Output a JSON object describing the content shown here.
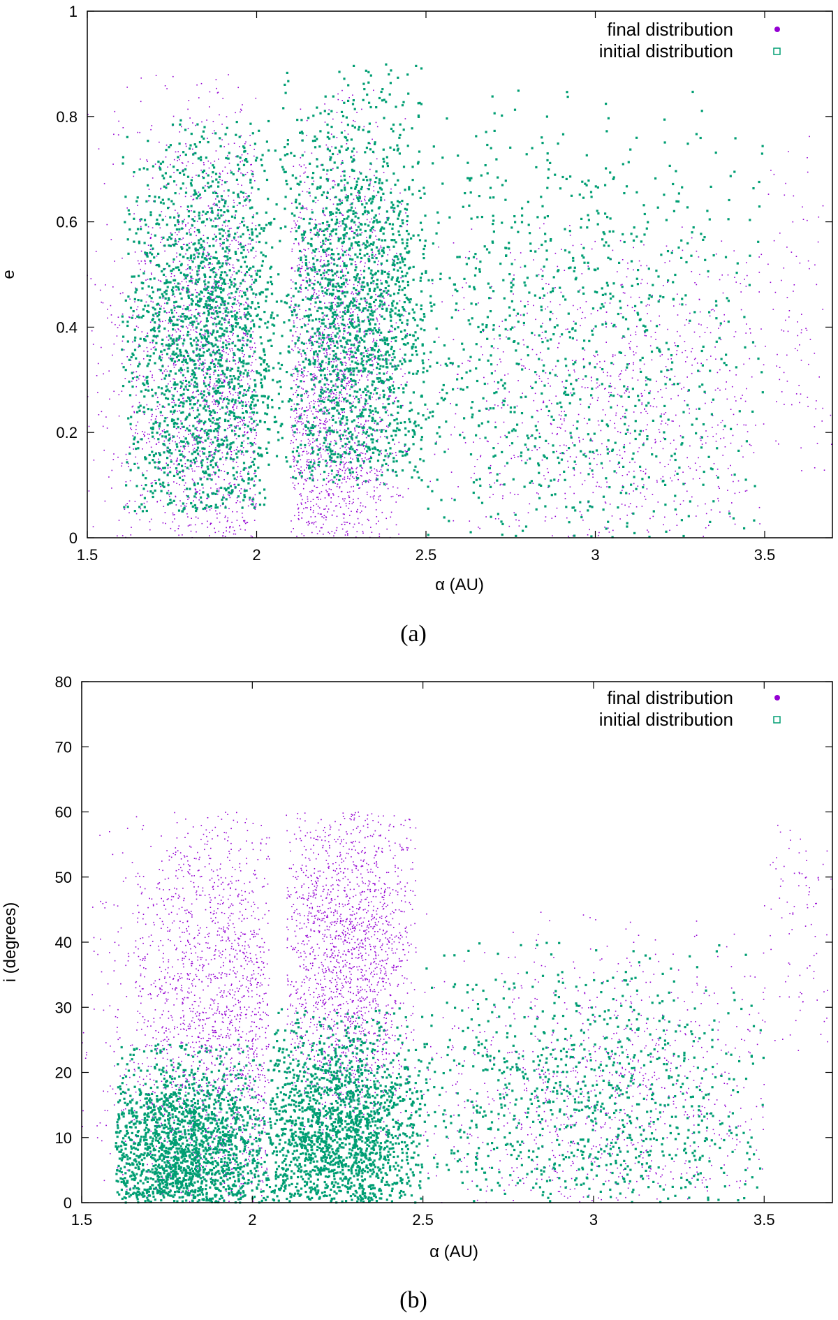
{
  "chart_data": [
    {
      "type": "scatter",
      "caption": "(a)",
      "xlabel": "α (AU)",
      "ylabel": "e",
      "xlim": [
        1.5,
        3.7
      ],
      "ylim": [
        0,
        1
      ],
      "xticks": [
        1.5,
        2,
        2.5,
        3,
        3.5
      ],
      "yticks": [
        0,
        0.2,
        0.4,
        0.6,
        0.8,
        1
      ],
      "xtick_labels": [
        "1.5",
        "2",
        "2.5",
        "3",
        "3.5"
      ],
      "ytick_labels": [
        "0",
        "0.2",
        "0.4",
        "0.6",
        "0.8",
        "1"
      ],
      "grid": false,
      "legend_position": "top-right",
      "series": [
        {
          "name": "final distribution",
          "color": "#9400d3",
          "marker": "dot",
          "clusters": [
            {
              "x": [
                1.5,
                2.0
              ],
              "y": [
                0.0,
                0.88
              ],
              "center": [
                1.88,
                0.3
              ],
              "density": "high"
            },
            {
              "x": [
                2.1,
                2.45
              ],
              "y": [
                0.0,
                0.85
              ],
              "center": [
                2.22,
                0.25
              ],
              "density": "high"
            },
            {
              "x": [
                2.5,
                3.5
              ],
              "y": [
                0.0,
                0.6
              ],
              "center": [
                3.05,
                0.25
              ],
              "density": "medium"
            },
            {
              "x": [
                3.5,
                3.7
              ],
              "y": [
                0.1,
                0.8
              ],
              "center": [
                3.6,
                0.35
              ],
              "density": "low"
            }
          ]
        },
        {
          "name": "initial distribution",
          "color": "#009e73",
          "marker": "open-square",
          "clusters": [
            {
              "x": [
                1.6,
                2.05
              ],
              "y": [
                0.05,
                0.8
              ],
              "center": [
                1.85,
                0.35
              ],
              "density": "high"
            },
            {
              "x": [
                2.05,
                2.5
              ],
              "y": [
                0.1,
                0.9
              ],
              "center": [
                2.3,
                0.4
              ],
              "density": "high"
            },
            {
              "x": [
                2.5,
                3.5
              ],
              "y": [
                0.0,
                0.85
              ],
              "center": [
                2.9,
                0.35
              ],
              "density": "medium"
            }
          ]
        }
      ]
    },
    {
      "type": "scatter",
      "caption": "(b)",
      "xlabel": "α (AU)",
      "ylabel": "i (degrees)",
      "xlim": [
        1.5,
        3.7
      ],
      "ylim": [
        0,
        80
      ],
      "xticks": [
        1.5,
        2,
        2.5,
        3,
        3.5
      ],
      "yticks": [
        0,
        10,
        20,
        30,
        40,
        50,
        60,
        70,
        80
      ],
      "xtick_labels": [
        "1.5",
        "2",
        "2.5",
        "3",
        "3.5"
      ],
      "ytick_labels": [
        "0",
        "10",
        "20",
        "30",
        "40",
        "50",
        "60",
        "70",
        "80"
      ],
      "grid": false,
      "legend_position": "top-right",
      "series": [
        {
          "name": "final distribution",
          "color": "#9400d3",
          "marker": "dot",
          "clusters": [
            {
              "x": [
                1.5,
                2.05
              ],
              "y": [
                0,
                60
              ],
              "center": [
                1.92,
                28
              ],
              "density": "high"
            },
            {
              "x": [
                2.1,
                2.48
              ],
              "y": [
                10,
                60
              ],
              "center": [
                2.28,
                38
              ],
              "density": "high"
            },
            {
              "x": [
                2.5,
                3.5
              ],
              "y": [
                0,
                45
              ],
              "center": [
                3.05,
                15
              ],
              "density": "medium"
            },
            {
              "x": [
                3.5,
                3.7
              ],
              "y": [
                20,
                60
              ],
              "center": [
                3.6,
                40
              ],
              "density": "low"
            }
          ]
        },
        {
          "name": "initial distribution",
          "color": "#009e73",
          "marker": "open-square",
          "clusters": [
            {
              "x": [
                1.6,
                2.05
              ],
              "y": [
                0,
                25
              ],
              "center": [
                1.8,
                7
              ],
              "density": "high"
            },
            {
              "x": [
                2.05,
                2.5
              ],
              "y": [
                0,
                30
              ],
              "center": [
                2.25,
                10
              ],
              "density": "high"
            },
            {
              "x": [
                2.5,
                3.5
              ],
              "y": [
                0,
                40
              ],
              "center": [
                3.0,
                15
              ],
              "density": "medium"
            }
          ]
        }
      ]
    }
  ]
}
